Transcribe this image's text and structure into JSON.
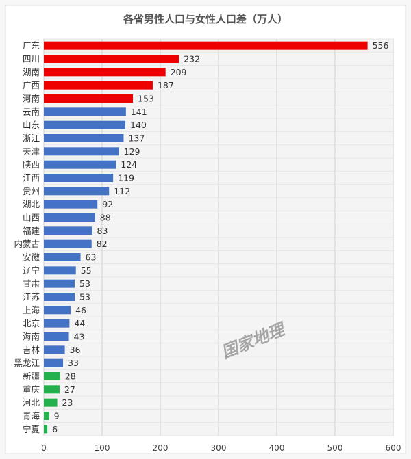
{
  "chart_data": {
    "type": "bar",
    "orientation": "horizontal",
    "title": "各省男性人口与女性人口差（万人）",
    "categories": [
      "广东",
      "四川",
      "湖南",
      "广西",
      "河南",
      "云南",
      "山东",
      "浙江",
      "天津",
      "陕西",
      "江西",
      "贵州",
      "湖北",
      "山西",
      "福建",
      "内蒙古",
      "安徽",
      "辽宁",
      "甘肃",
      "江苏",
      "上海",
      "北京",
      "海南",
      "吉林",
      "黑龙江",
      "新疆",
      "重庆",
      "河北",
      "青海",
      "宁夏"
    ],
    "values": [
      556,
      232,
      209,
      187,
      153,
      141,
      140,
      137,
      129,
      124,
      119,
      112,
      92,
      88,
      83,
      82,
      63,
      55,
      53,
      53,
      46,
      44,
      43,
      36,
      33,
      28,
      27,
      23,
      9,
      6
    ],
    "xlim": [
      0,
      600
    ],
    "xticks": [
      0,
      100,
      200,
      300,
      400,
      500,
      600
    ],
    "grid": true,
    "legend": "none",
    "colors": {
      "red": "#ee0000",
      "blue": "#4472c4",
      "green": "#22b14c"
    },
    "bar_colors": [
      "red",
      "red",
      "red",
      "red",
      "red",
      "blue",
      "blue",
      "blue",
      "blue",
      "blue",
      "blue",
      "blue",
      "blue",
      "blue",
      "blue",
      "blue",
      "blue",
      "blue",
      "blue",
      "blue",
      "blue",
      "blue",
      "blue",
      "blue",
      "blue",
      "green",
      "green",
      "green",
      "green",
      "green"
    ],
    "watermark": "国家地理"
  }
}
